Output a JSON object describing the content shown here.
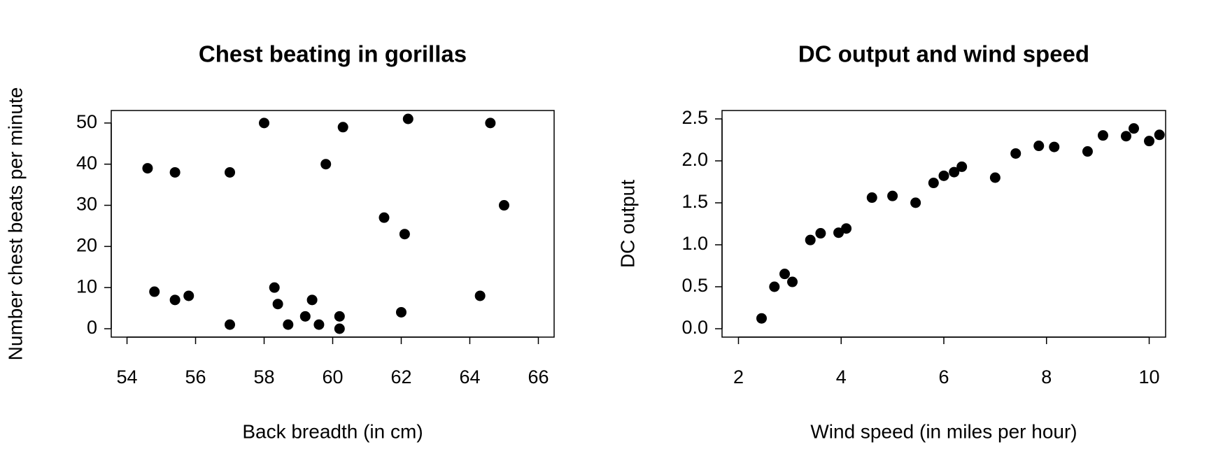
{
  "chart_data": [
    {
      "type": "scatter",
      "title": "Chest beating in gorillas",
      "x_label": "Back breadth (in cm)",
      "y_label": "Number chest beats per minute",
      "xlim": [
        53.54,
        66.46
      ],
      "ylim": [
        -2.04,
        53.04
      ],
      "xticks": [
        54,
        56,
        58,
        60,
        62,
        64,
        66
      ],
      "yticks": [
        0,
        10,
        20,
        30,
        40,
        50
      ],
      "color": "#000000",
      "x": [
        54.6,
        54.8,
        55.4,
        55.4,
        55.8,
        57,
        57,
        58,
        58.3,
        58.4,
        58.7,
        59.2,
        59.4,
        59.6,
        59.8,
        60.2,
        60.2,
        60.3,
        61.5,
        62,
        62.1,
        62.2,
        64.3,
        64.6,
        65
      ],
      "values": [
        39,
        9,
        38,
        7,
        8,
        38,
        1,
        50,
        10,
        6,
        1,
        3,
        7,
        1,
        40,
        3,
        0,
        49,
        27,
        4,
        23,
        51,
        8,
        50,
        30
      ]
    },
    {
      "type": "scatter",
      "title": "DC output and wind speed",
      "x_label": "Wind speed (in miles per hour)",
      "y_label": "DC output",
      "xlim": [
        1.68,
        10.32
      ],
      "ylim": [
        -0.1,
        2.6
      ],
      "xticks": [
        2,
        4,
        6,
        8,
        10
      ],
      "yticks": [
        {
          "value": 0,
          "label": "0.0"
        },
        0.5,
        {
          "value": 1,
          "label": "1.0"
        },
        1.5,
        {
          "value": 2,
          "label": "2.0"
        },
        2.5
      ],
      "color": "#000000",
      "x": [
        5.0,
        6.0,
        3.4,
        2.7,
        10.0,
        9.7,
        9.55,
        3.05,
        8.15,
        6.2,
        2.9,
        6.35,
        4.6,
        5.8,
        7.4,
        3.6,
        7.85,
        8.8,
        7.0,
        5.45,
        9.1,
        10.2,
        4.1,
        3.95,
        2.45
      ],
      "values": [
        1.582,
        1.822,
        1.057,
        0.5,
        2.236,
        2.386,
        2.294,
        0.558,
        2.166,
        1.866,
        0.653,
        1.93,
        1.562,
        1.737,
        2.088,
        1.137,
        2.179,
        2.112,
        1.8,
        1.501,
        2.303,
        2.31,
        1.194,
        1.144,
        0.123
      ]
    }
  ]
}
